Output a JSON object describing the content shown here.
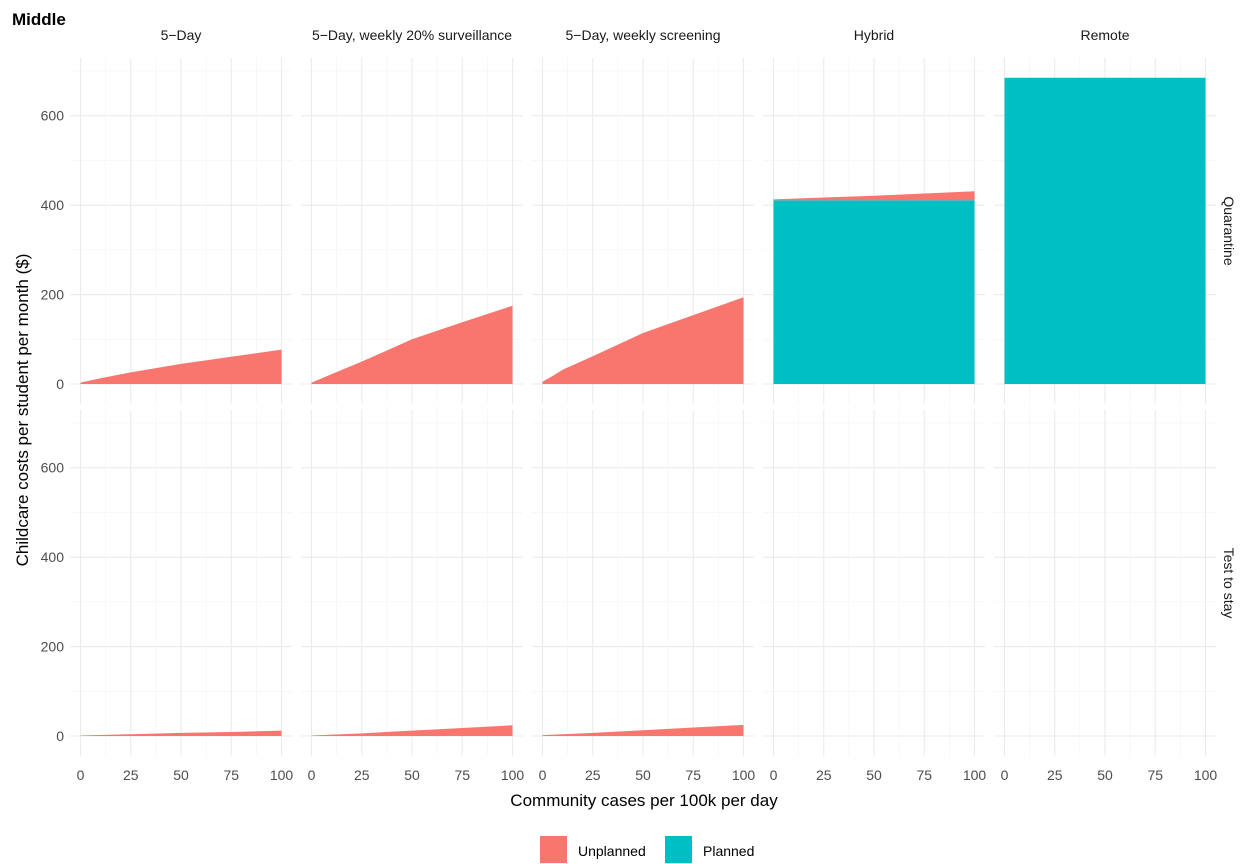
{
  "chart_data": {
    "type": "area",
    "title": "Middle",
    "xlabel": "Community cases per 100k per day",
    "ylabel": "Childcare costs per student per month ($)",
    "xlim": [
      0,
      100
    ],
    "ylim": [
      0,
      700
    ],
    "x_ticks": [
      0,
      25,
      50,
      75,
      100
    ],
    "y_ticks": [
      0,
      200,
      400,
      600
    ],
    "x_tick_labels": [
      "0",
      "25",
      "50",
      "75",
      "100"
    ],
    "y_tick_labels": [
      "0",
      "200",
      "400",
      "600"
    ],
    "columns": [
      "5−Day",
      "5−Day, weekly 20% surveillance",
      "5−Day, weekly screening",
      "Hybrid",
      "Remote"
    ],
    "rows": [
      "Quarantine",
      "Test to stay"
    ],
    "grid": true,
    "stacked": true,
    "legend_position": "bottom",
    "series_order": [
      "Unplanned",
      "Planned"
    ],
    "colors": {
      "Unplanned": "#F8766D",
      "Planned": "#00BFC4"
    },
    "legend": [
      {
        "name": "Unplanned",
        "color": "#F8766D"
      },
      {
        "name": "Planned",
        "color": "#00BFC4"
      }
    ],
    "panels": [
      {
        "row": "Quarantine",
        "column": "5−Day",
        "x": [
          0,
          10,
          25,
          50,
          75,
          100
        ],
        "series": [
          {
            "name": "Planned",
            "values": [
              0,
              0,
              0,
              0,
              0,
              0
            ]
          },
          {
            "name": "Unplanned",
            "values": [
              3,
              13,
              26,
              45,
              61,
              77
            ]
          }
        ]
      },
      {
        "row": "Quarantine",
        "column": "5−Day, weekly 20% surveillance",
        "x": [
          0,
          10,
          25,
          50,
          75,
          100
        ],
        "series": [
          {
            "name": "Planned",
            "values": [
              0,
              0,
              0,
              0,
              0,
              0
            ]
          },
          {
            "name": "Unplanned",
            "values": [
              3,
              22,
              50,
              100,
              138,
              175
            ]
          }
        ]
      },
      {
        "row": "Quarantine",
        "column": "5−Day, weekly screening",
        "x": [
          0,
          5,
          10,
          25,
          50,
          75,
          100
        ],
        "series": [
          {
            "name": "Planned",
            "values": [
              0,
              0,
              0,
              0,
              0,
              0,
              0
            ]
          },
          {
            "name": "Unplanned",
            "values": [
              5,
              18,
              32,
              62,
              114,
              154,
              194
            ]
          }
        ]
      },
      {
        "row": "Quarantine",
        "column": "Hybrid",
        "x": [
          0,
          25,
          50,
          75,
          100
        ],
        "series": [
          {
            "name": "Planned",
            "values": [
              411,
              411,
              411,
              411,
              411
            ]
          },
          {
            "name": "Unplanned",
            "values": [
              2,
              6,
              10,
              15,
              20
            ]
          }
        ]
      },
      {
        "row": "Quarantine",
        "column": "Remote",
        "x": [
          0,
          25,
          50,
          75,
          100
        ],
        "series": [
          {
            "name": "Planned",
            "values": [
              685,
              685,
              685,
              685,
              685
            ]
          },
          {
            "name": "Unplanned",
            "values": [
              0,
              0,
              0,
              0,
              0
            ]
          }
        ]
      },
      {
        "row": "Test to stay",
        "column": "5−Day",
        "x": [
          0,
          25,
          50,
          75,
          100
        ],
        "series": [
          {
            "name": "Planned",
            "values": [
              0,
              0,
              0,
              0,
              0
            ]
          },
          {
            "name": "Unplanned",
            "values": [
              1,
              4,
              7,
              9,
              12
            ]
          }
        ]
      },
      {
        "row": "Test to stay",
        "column": "5−Day, weekly 20% surveillance",
        "x": [
          0,
          25,
          50,
          75,
          100
        ],
        "series": [
          {
            "name": "Planned",
            "values": [
              0,
              0,
              0,
              0,
              0
            ]
          },
          {
            "name": "Unplanned",
            "values": [
              1,
              6,
              12,
              18,
              24
            ]
          }
        ]
      },
      {
        "row": "Test to stay",
        "column": "5−Day, weekly screening",
        "x": [
          0,
          25,
          50,
          75,
          100
        ],
        "series": [
          {
            "name": "Planned",
            "values": [
              0,
              0,
              0,
              0,
              0
            ]
          },
          {
            "name": "Unplanned",
            "values": [
              2,
              7,
              13,
              19,
              25
            ]
          }
        ]
      },
      {
        "row": "Test to stay",
        "column": "Hybrid",
        "x": [
          0,
          100
        ],
        "series": [
          {
            "name": "Planned",
            "values": [
              0,
              0
            ]
          },
          {
            "name": "Unplanned",
            "values": [
              0,
              0
            ]
          }
        ]
      },
      {
        "row": "Test to stay",
        "column": "Remote",
        "x": [
          0,
          100
        ],
        "series": [
          {
            "name": "Planned",
            "values": [
              0,
              0
            ]
          },
          {
            "name": "Unplanned",
            "values": [
              0,
              0
            ]
          }
        ]
      }
    ]
  }
}
